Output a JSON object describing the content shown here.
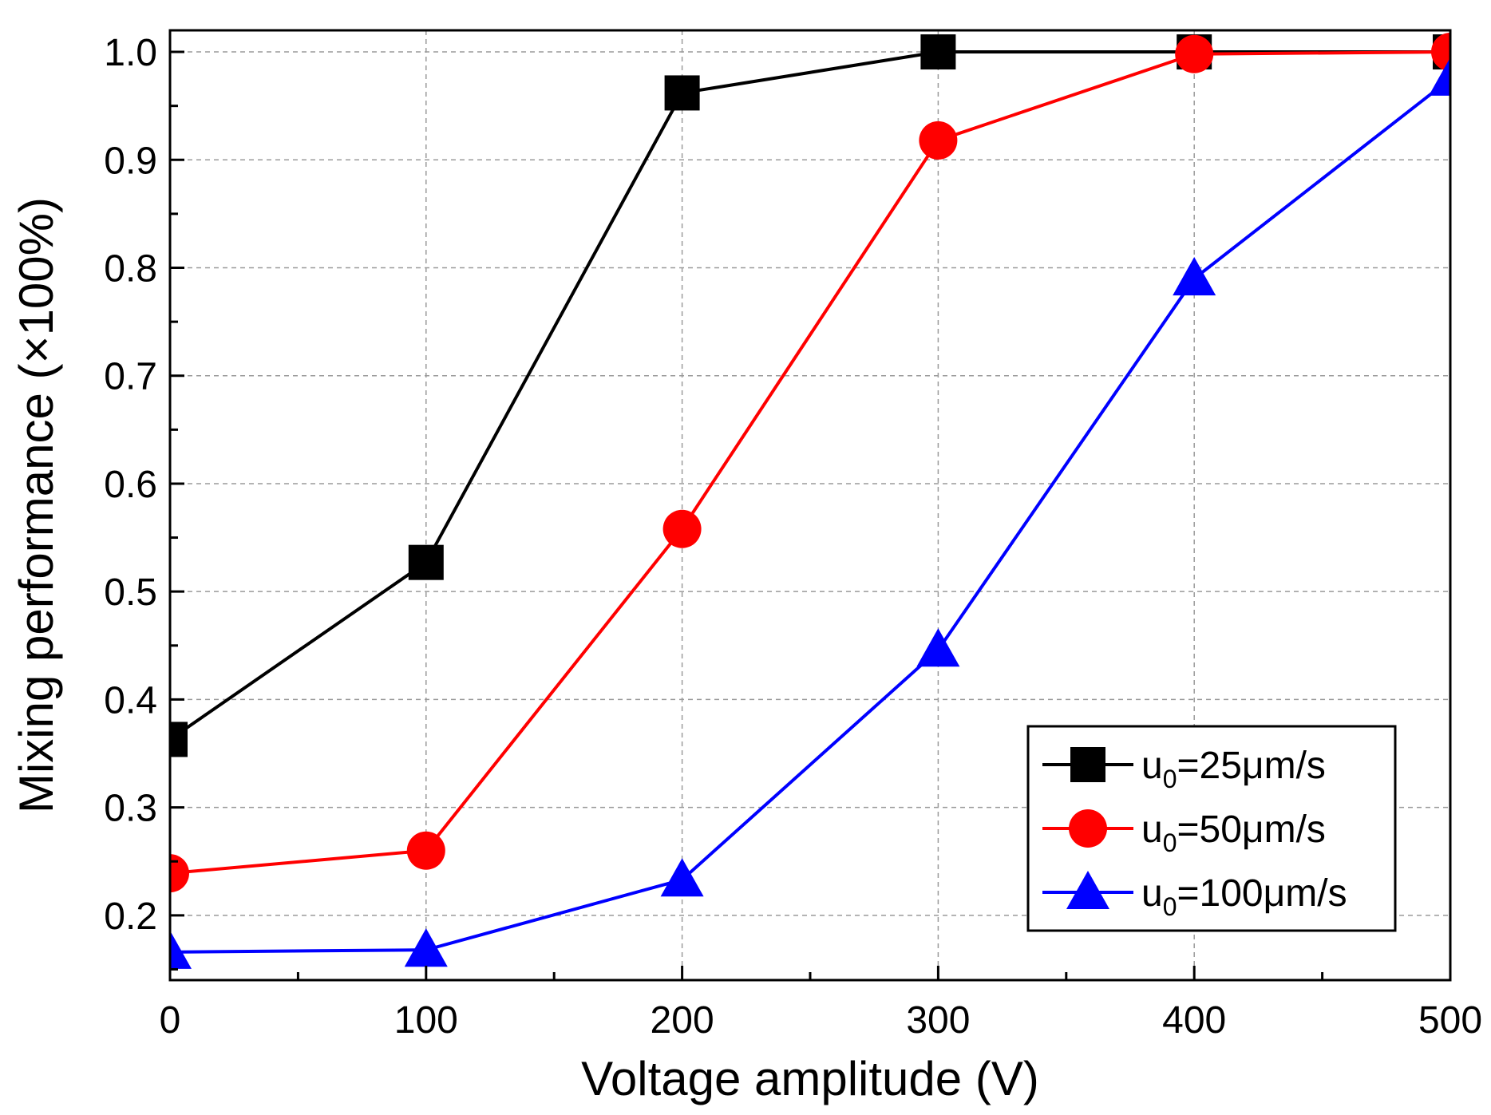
{
  "chart_data": {
    "type": "line",
    "title": "",
    "xlabel": "Voltage amplitude (V)",
    "ylabel": "Mixing performance (×100%)",
    "xlim": [
      0,
      500
    ],
    "ylim": [
      0.14,
      1.02
    ],
    "x_ticks": [
      "0",
      "100",
      "200",
      "300",
      "400",
      "500"
    ],
    "y_ticks": [
      "0.2",
      "0.3",
      "0.4",
      "0.5",
      "0.6",
      "0.7",
      "0.8",
      "0.9",
      "1.0"
    ],
    "grid": true,
    "legend_position": "bottom-right",
    "x": [
      0,
      100,
      200,
      300,
      400,
      500
    ],
    "series": [
      {
        "name": "u0=25μm/s",
        "label_main": "u",
        "label_sub": "0",
        "label_rest": "=25μm/s",
        "marker": "square",
        "color": "#000000",
        "values": [
          0.363,
          0.527,
          0.962,
          1.0,
          1.0,
          1.0
        ]
      },
      {
        "name": "u0=50μm/s",
        "label_main": "u",
        "label_sub": "0",
        "label_rest": "=50μm/s",
        "marker": "circle",
        "color": "#ff0000",
        "values": [
          0.239,
          0.26,
          0.558,
          0.918,
          0.998,
          1.0
        ]
      },
      {
        "name": "u0=100μm/s",
        "label_main": "u",
        "label_sub": "0",
        "label_rest": "=100μm/s",
        "marker": "triangle",
        "color": "#0000ff",
        "values": [
          0.166,
          0.168,
          0.233,
          0.446,
          0.79,
          0.975
        ]
      }
    ]
  }
}
